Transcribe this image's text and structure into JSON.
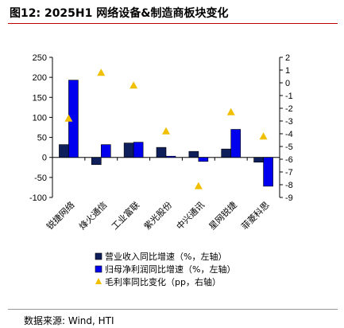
{
  "title": "图12:  2025H1 网络设备&制造商板块变化",
  "source": "数据来源:  Wind, HTI",
  "chart_data": {
    "type": "bar",
    "categories": [
      "锐捷网络",
      "烽火通信",
      "工业富联",
      "紫光股份",
      "中兴通讯",
      "星网锐捷",
      "菲菱科思"
    ],
    "series": [
      {
        "name": "营业收入同比增速（%，左轴）",
        "values": [
          32,
          -18,
          36,
          25,
          15,
          21,
          -12
        ],
        "axis": "left",
        "kind": "bar",
        "color": "#0f1f5c"
      },
      {
        "name": "归母净利润同比增速（%，左轴）",
        "values": [
          193,
          32,
          38,
          3,
          -10,
          70,
          -72
        ],
        "axis": "left",
        "kind": "bar",
        "color": "#0000ee"
      },
      {
        "name": "毛利率同比变化（pp，右轴）",
        "values": [
          -2.8,
          0.8,
          -0.2,
          -3.8,
          -8.1,
          -2.3,
          -4.2
        ],
        "axis": "right",
        "kind": "marker",
        "color": "#f0c000"
      }
    ],
    "ylim_left": [
      -100,
      250
    ],
    "yticks_left": [
      -100,
      -50,
      0,
      50,
      100,
      150,
      200,
      250
    ],
    "ylim_right": [
      -9,
      2
    ],
    "yticks_right": [
      -9,
      -8,
      -7,
      -6,
      -5,
      -4,
      -3,
      -2,
      -1,
      0,
      1,
      2
    ],
    "legend_position": "bottom"
  }
}
